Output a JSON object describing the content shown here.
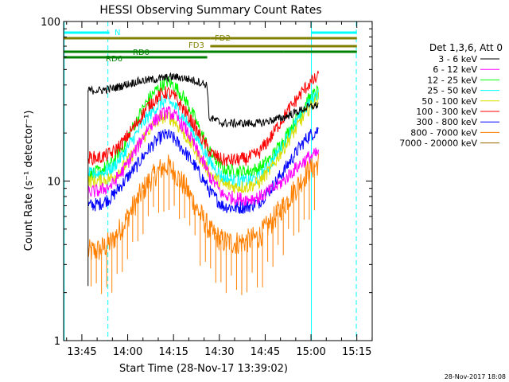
{
  "chart_data": {
    "type": "line",
    "title": "HESSI Observing Summary Count Rates",
    "xlabel": "Start Time (28-Nov-17 13:39:02)",
    "ylabel": "Count Rate (s⁻¹ detector⁻¹)",
    "yscale": "log",
    "ylim": [
      1,
      100
    ],
    "xlim_minutes": [
      0,
      101
    ],
    "x_tick_labels": [
      "13:45",
      "14:00",
      "14:15",
      "14:30",
      "14:45",
      "15:00",
      "15:15"
    ],
    "x_tick_minutes": [
      5.97,
      20.97,
      35.97,
      50.97,
      65.97,
      80.97,
      95.97
    ],
    "y_tick_labels": [
      "1",
      "10",
      "100"
    ],
    "y_tick_values": [
      1,
      10,
      100
    ],
    "legend_title": "Det 1,3,6, Att 0",
    "legend_position": "right",
    "series": [
      {
        "name": "3 - 6 keV",
        "color": "#000000",
        "x": [
          8,
          12,
          16,
          20,
          24,
          28,
          32,
          36,
          40,
          44,
          47,
          47.5,
          52,
          56,
          60,
          64,
          68,
          72,
          76,
          80,
          83.5
        ],
        "y": [
          37,
          37,
          38,
          40,
          42,
          43,
          44,
          45,
          44,
          42,
          40,
          25,
          23,
          23,
          23,
          23,
          24,
          25,
          27,
          29,
          30
        ]
      },
      {
        "name": "6 - 12 keV",
        "color": "#ff00ff",
        "x": [
          8,
          12,
          16,
          20,
          24,
          28,
          32,
          34,
          36,
          40,
          44,
          48,
          52,
          56,
          60,
          64,
          68,
          72,
          76,
          80,
          83.5
        ],
        "y": [
          8.5,
          8.7,
          9.5,
          12,
          16,
          22,
          26,
          27,
          26,
          21,
          15,
          10.5,
          8.2,
          7.8,
          7.7,
          7.9,
          8.8,
          10,
          12,
          14,
          15
        ]
      },
      {
        "name": "12 - 25 keV",
        "color": "#00ff00",
        "x": [
          8,
          12,
          16,
          20,
          24,
          28,
          32,
          34,
          36,
          40,
          44,
          48,
          52,
          56,
          60,
          64,
          68,
          72,
          76,
          80,
          83.5
        ],
        "y": [
          11,
          11.5,
          13,
          17,
          24,
          33,
          40,
          42,
          40,
          32,
          22,
          15,
          12,
          11.5,
          11.5,
          12,
          14,
          18,
          24,
          32,
          37
        ]
      },
      {
        "name": "25 - 50 keV",
        "color": "#00ffff",
        "x": [
          8,
          12,
          16,
          20,
          24,
          28,
          32,
          34,
          36,
          40,
          44,
          48,
          52,
          56,
          60,
          64,
          68,
          72,
          76,
          80,
          83.5
        ],
        "y": [
          11,
          11.2,
          12,
          15,
          20,
          26,
          31,
          32,
          30,
          24,
          18,
          13,
          10.5,
          10,
          10,
          10.5,
          13,
          17,
          23,
          30,
          36
        ]
      },
      {
        "name": "50 - 100 keV",
        "color": "#dddd00",
        "x": [
          8,
          12,
          16,
          20,
          24,
          28,
          32,
          34,
          36,
          40,
          44,
          48,
          52,
          56,
          60,
          64,
          68,
          72,
          76,
          80,
          83.5
        ],
        "y": [
          10,
          10,
          10.5,
          12.5,
          16,
          21,
          25,
          25.5,
          24,
          19,
          14.5,
          11,
          9.5,
          9.2,
          9.2,
          9.8,
          12,
          16,
          21,
          28,
          33
        ]
      },
      {
        "name": "100 - 300 keV",
        "color": "#ff0000",
        "x": [
          8,
          12,
          16,
          20,
          24,
          28,
          32,
          34,
          36,
          40,
          44,
          48,
          52,
          56,
          60,
          64,
          68,
          72,
          76,
          80,
          83.5
        ],
        "y": [
          14,
          14,
          15,
          18,
          23,
          30,
          35,
          36,
          34,
          27,
          20,
          15,
          13.5,
          13.5,
          13.8,
          15,
          19,
          25,
          32,
          40,
          45
        ]
      },
      {
        "name": "300 - 800 keV",
        "color": "#0000ff",
        "x": [
          8,
          12,
          16,
          20,
          24,
          28,
          32,
          34,
          36,
          40,
          44,
          48,
          52,
          56,
          60,
          64,
          68,
          72,
          76,
          80,
          83.5
        ],
        "y": [
          7,
          7.2,
          8,
          10,
          12.5,
          16,
          19,
          19.5,
          18.5,
          15,
          11.5,
          8.5,
          7,
          6.8,
          6.9,
          7.4,
          9,
          11.5,
          15,
          19,
          21
        ]
      },
      {
        "name": "800 - 7000 keV",
        "color": "#ff8000",
        "x": [
          8,
          12,
          16,
          20,
          24,
          28,
          32,
          34,
          36,
          40,
          44,
          48,
          52,
          56,
          60,
          64,
          68,
          72,
          76,
          80,
          83.5
        ],
        "y": [
          3.6,
          3.7,
          4.2,
          5.5,
          7.5,
          10,
          12,
          12.5,
          11.5,
          9,
          6.5,
          4.8,
          4.2,
          4.1,
          4.2,
          4.5,
          5.5,
          7,
          9,
          11.5,
          13
        ]
      },
      {
        "name": "7000 - 20000 keV",
        "color": "#996600",
        "x": [],
        "y": []
      }
    ],
    "status_bars": [
      {
        "label": "N",
        "color": "#00ffff",
        "segments": [
          [
            0,
            15
          ],
          [
            81,
            96
          ]
        ]
      },
      {
        "label": "FD2",
        "color": "#808000",
        "segments": [
          [
            0,
            48
          ],
          [
            48,
            96
          ]
        ]
      },
      {
        "label": "FD3",
        "color": "#808000",
        "segments": [
          [
            48,
            96
          ]
        ]
      },
      {
        "label": "RD0",
        "color": "#008000",
        "segments": [
          [
            0,
            47
          ],
          [
            47,
            72
          ],
          [
            72,
            96
          ]
        ]
      },
      {
        "label": "RD6",
        "color": "#008000",
        "segments": [
          [
            0,
            47
          ]
        ]
      }
    ],
    "vertical_lines": [
      {
        "x": 0.2,
        "color": "#00ffff",
        "style": "solid"
      },
      {
        "x": 14.5,
        "color": "#00ffff",
        "style": "dashed"
      },
      {
        "x": 81.1,
        "color": "#00ffff",
        "style": "solid"
      },
      {
        "x": 95.8,
        "color": "#00ffff",
        "style": "dashed"
      }
    ],
    "footer_date": "28-Nov-2017 18:08"
  }
}
